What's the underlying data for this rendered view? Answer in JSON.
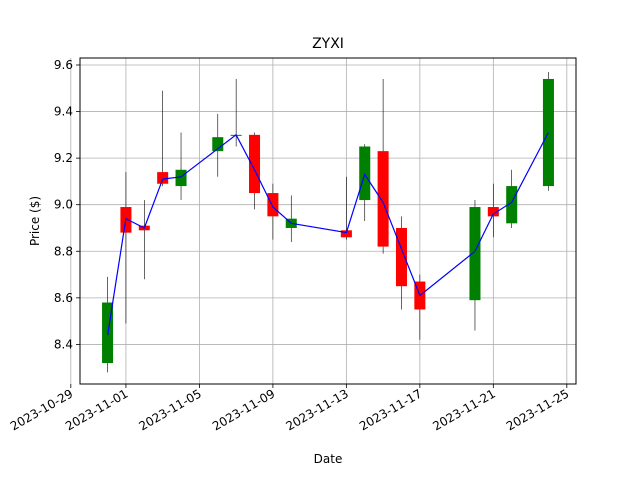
{
  "chart_data": {
    "type": "candlestick",
    "title": "ZYXI",
    "xlabel": "Date",
    "ylabel": "Price ($)",
    "grid": true,
    "x_range": [
      "2023-10-29T12:00",
      "2023-11-25T12:00"
    ],
    "ylim": [
      8.23,
      9.63
    ],
    "x_ticks": [
      "2023-10-29",
      "2023-11-01",
      "2023-11-05",
      "2023-11-09",
      "2023-11-13",
      "2023-11-17",
      "2023-11-21",
      "2023-11-25"
    ],
    "y_ticks": [
      8.4,
      8.6,
      8.8,
      9.0,
      9.2,
      9.4,
      9.6
    ],
    "up_color": "#008000",
    "down_color": "#ff0000",
    "line_color": "#0000ff",
    "candles": [
      {
        "date": "2023-10-31",
        "open": 8.32,
        "high": 8.69,
        "low": 8.28,
        "close": 8.58
      },
      {
        "date": "2023-11-01",
        "open": 8.99,
        "high": 9.14,
        "low": 8.49,
        "close": 8.88
      },
      {
        "date": "2023-11-02",
        "open": 8.91,
        "high": 9.02,
        "low": 8.68,
        "close": 8.89
      },
      {
        "date": "2023-11-03",
        "open": 9.14,
        "high": 9.49,
        "low": 9.08,
        "close": 9.09
      },
      {
        "date": "2023-11-04",
        "open": 9.08,
        "high": 9.31,
        "low": 9.02,
        "close": 9.15
      },
      {
        "date": "2023-11-06",
        "open": 9.23,
        "high": 9.39,
        "low": 9.12,
        "close": 9.29
      },
      {
        "date": "2023-11-07",
        "open": 9.3,
        "high": 9.54,
        "low": 9.25,
        "close": 9.3
      },
      {
        "date": "2023-11-08",
        "open": 9.3,
        "high": 9.31,
        "low": 8.98,
        "close": 9.05
      },
      {
        "date": "2023-11-09",
        "open": 9.05,
        "high": 9.09,
        "low": 8.85,
        "close": 8.95
      },
      {
        "date": "2023-11-10",
        "open": 8.9,
        "high": 9.04,
        "low": 8.84,
        "close": 8.94
      },
      {
        "date": "2023-11-13",
        "open": 8.89,
        "high": 9.12,
        "low": 8.85,
        "close": 8.86
      },
      {
        "date": "2023-11-14",
        "open": 9.02,
        "high": 9.26,
        "low": 8.93,
        "close": 9.25
      },
      {
        "date": "2023-11-15",
        "open": 9.23,
        "high": 9.54,
        "low": 8.79,
        "close": 8.82
      },
      {
        "date": "2023-11-16",
        "open": 8.9,
        "high": 8.95,
        "low": 8.55,
        "close": 8.65
      },
      {
        "date": "2023-11-17",
        "open": 8.67,
        "high": 8.7,
        "low": 8.42,
        "close": 8.55
      },
      {
        "date": "2023-11-20",
        "open": 8.59,
        "high": 9.02,
        "low": 8.46,
        "close": 8.99
      },
      {
        "date": "2023-11-21",
        "open": 8.99,
        "high": 9.09,
        "low": 8.86,
        "close": 8.95
      },
      {
        "date": "2023-11-22",
        "open": 8.92,
        "high": 9.15,
        "low": 8.9,
        "close": 9.08
      },
      {
        "date": "2023-11-24",
        "open": 9.08,
        "high": 9.57,
        "low": 9.06,
        "close": 9.54
      }
    ],
    "line": {
      "x": [
        "2023-10-31",
        "2023-11-01",
        "2023-11-02",
        "2023-11-03",
        "2023-11-04",
        "2023-11-07",
        "2023-11-08",
        "2023-11-09",
        "2023-11-10",
        "2023-11-13",
        "2023-11-14",
        "2023-11-15",
        "2023-11-17",
        "2023-11-20",
        "2023-11-21",
        "2023-11-22",
        "2023-11-24"
      ],
      "y": [
        8.44,
        8.94,
        8.9,
        9.11,
        9.12,
        9.3,
        9.15,
        8.99,
        8.92,
        8.88,
        9.13,
        9.01,
        8.61,
        8.8,
        8.96,
        9.01,
        9.31
      ]
    }
  }
}
